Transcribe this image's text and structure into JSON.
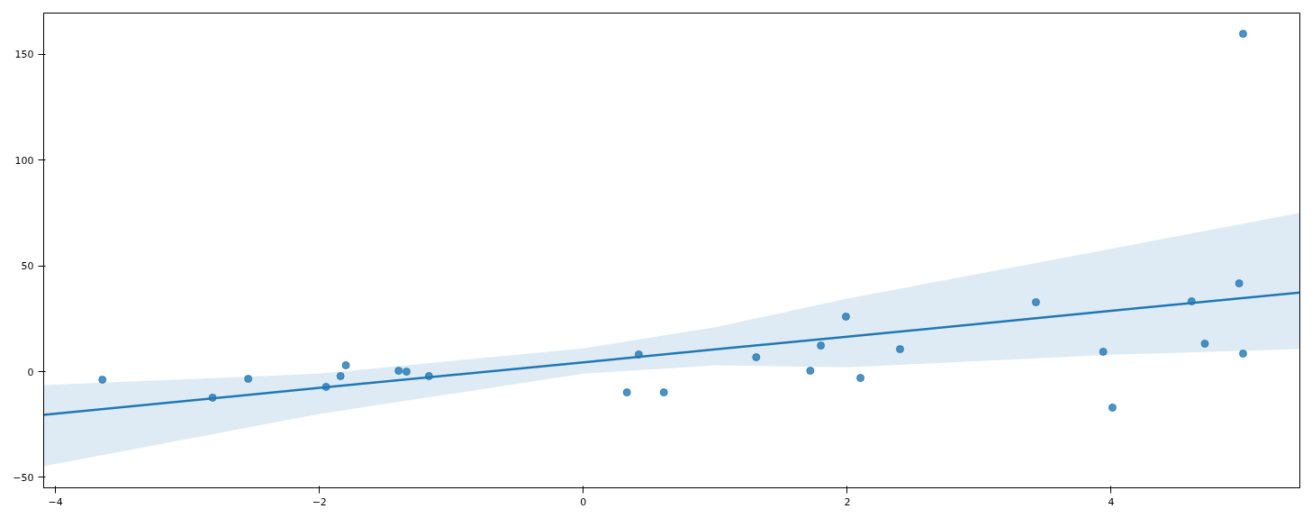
{
  "chart_data": {
    "type": "scatter",
    "series": [
      {
        "color": "#1f77b4",
        "marker": "circle",
        "x": [
          -3.645,
          -2.81,
          -2.54,
          -1.95,
          -1.84,
          -1.8,
          -1.4,
          -1.34,
          -1.17,
          0.33,
          0.42,
          0.61,
          1.31,
          1.72,
          1.8,
          1.99,
          2.1,
          2.4,
          3.43,
          3.94,
          4.01,
          4.61,
          4.71,
          4.97,
          5.0,
          5.0
        ],
        "values": [
          -3.8,
          -12.3,
          -3.4,
          -7.2,
          -2.1,
          3.0,
          0.4,
          0,
          -2.1,
          -9.8,
          8.1,
          -9.8,
          6.8,
          0.4,
          12.3,
          26.0,
          -3.0,
          10.6,
          32.8,
          9.4,
          -17.0,
          33.2,
          13.2,
          41.7,
          159.6,
          8.5
        ]
      },
      {
        "type": "line",
        "color": "#1f77b4",
        "x": [
          -4.09,
          -2,
          0,
          1,
          2,
          4,
          5.43
        ],
        "values": [
          -20.4,
          -7.7,
          4.4,
          10.5,
          16.5,
          28.7,
          37.4
        ],
        "lower": [
          -44.7,
          -20,
          -1,
          3,
          2,
          8,
          10.6
        ],
        "upper": [
          -6.4,
          -1,
          11,
          21,
          34.5,
          58,
          75
        ]
      }
    ],
    "xlim": [
      -4.09,
      5.43
    ],
    "ylim": [
      -54.9,
      169.4
    ],
    "xticks": [
      {
        "value": -4,
        "label": "−4"
      },
      {
        "value": -2,
        "label": "−2"
      },
      0,
      2,
      4
    ],
    "yticks": [
      {
        "value": -50,
        "label": "−50"
      },
      0,
      50,
      100,
      150
    ],
    "grid": false
  }
}
